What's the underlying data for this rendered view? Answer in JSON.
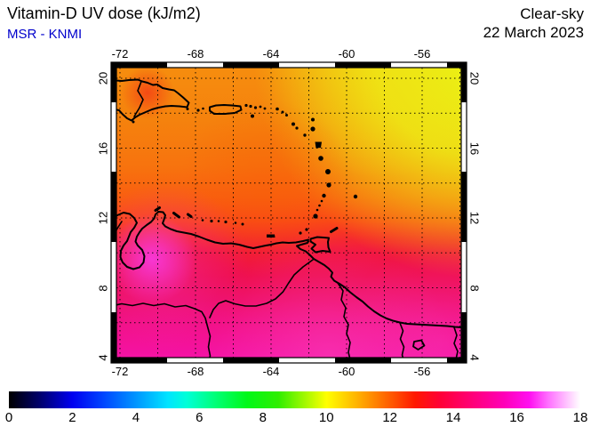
{
  "header": {
    "title": "Vitamin-D UV dose (kJ/m2)",
    "source": "MSR - KNMI",
    "source_color": "#0000cc",
    "condition": "Clear-sky",
    "date": "22 March 2023"
  },
  "map": {
    "lon_tick_labels": [
      "-72",
      "-68",
      "-64",
      "-60",
      "-56"
    ],
    "lat_tick_labels": [
      "20",
      "16",
      "12",
      "8",
      "4"
    ]
  },
  "colorbar": {
    "tick_labels": [
      "0",
      "2",
      "4",
      "6",
      "8",
      "10",
      "12",
      "14",
      "16",
      "18"
    ],
    "min": 0,
    "max": 18,
    "unit": "kJ/m2",
    "stops": [
      [
        0,
        "#000000"
      ],
      [
        1,
        "#000070"
      ],
      [
        2,
        "#0000f0"
      ],
      [
        3,
        "#0048ff"
      ],
      [
        4,
        "#0095ff"
      ],
      [
        5,
        "#00e4ff"
      ],
      [
        5.6,
        "#00ffd8"
      ],
      [
        6.5,
        "#00ff78"
      ],
      [
        7.5,
        "#00f818"
      ],
      [
        8.5,
        "#30ee00"
      ],
      [
        9.3,
        "#a0f800"
      ],
      [
        10,
        "#ffff00"
      ],
      [
        11,
        "#ffb000"
      ],
      [
        12,
        "#ff5c00"
      ],
      [
        12.8,
        "#ff1800"
      ],
      [
        13.6,
        "#ff0038"
      ],
      [
        14.6,
        "#ff0078"
      ],
      [
        15.6,
        "#ff00b8"
      ],
      [
        16.4,
        "#ff10f0"
      ],
      [
        17,
        "#ff70ff"
      ],
      [
        17.6,
        "#ffc8ff"
      ],
      [
        18,
        "#ffffff"
      ]
    ]
  }
}
